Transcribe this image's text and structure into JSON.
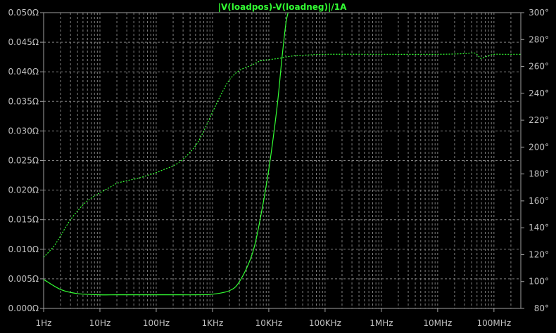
{
  "chart_data": {
    "type": "line",
    "title": "|V(loadpos)-V(loadneg)|/1A",
    "x_scale": "log",
    "xlim": [
      1,
      300000000
    ],
    "x_ticks": [
      {
        "value": 1,
        "label": "1Hz"
      },
      {
        "value": 10,
        "label": "10Hz"
      },
      {
        "value": 100,
        "label": "100Hz"
      },
      {
        "value": 1000,
        "label": "1KHz"
      },
      {
        "value": 10000,
        "label": "10KHz"
      },
      {
        "value": 100000,
        "label": "100KHz"
      },
      {
        "value": 1000000,
        "label": "1MHz"
      },
      {
        "value": 10000000,
        "label": "10MHz"
      },
      {
        "value": 100000000,
        "label": "100MHz"
      }
    ],
    "y_left": {
      "ylim": [
        0,
        0.05
      ],
      "ticks": [
        {
          "value": 0.0,
          "label": "0.000Ω"
        },
        {
          "value": 0.005,
          "label": "0.005Ω"
        },
        {
          "value": 0.01,
          "label": "0.010Ω"
        },
        {
          "value": 0.015,
          "label": "0.015Ω"
        },
        {
          "value": 0.02,
          "label": "0.020Ω"
        },
        {
          "value": 0.025,
          "label": "0.025Ω"
        },
        {
          "value": 0.03,
          "label": "0.030Ω"
        },
        {
          "value": 0.035,
          "label": "0.035Ω"
        },
        {
          "value": 0.04,
          "label": "0.040Ω"
        },
        {
          "value": 0.045,
          "label": "0.045Ω"
        },
        {
          "value": 0.05,
          "label": "0.050Ω"
        }
      ]
    },
    "y_right": {
      "ylim": [
        80,
        300
      ],
      "ticks": [
        {
          "value": 80,
          "label": "80°"
        },
        {
          "value": 100,
          "label": "100°"
        },
        {
          "value": 120,
          "label": "120°"
        },
        {
          "value": 140,
          "label": "140°"
        },
        {
          "value": 160,
          "label": "160°"
        },
        {
          "value": 180,
          "label": "180°"
        },
        {
          "value": 200,
          "label": "200°"
        },
        {
          "value": 220,
          "label": "220°"
        },
        {
          "value": 240,
          "label": "240°"
        },
        {
          "value": 260,
          "label": "260°"
        },
        {
          "value": 280,
          "label": "280°"
        },
        {
          "value": 300,
          "label": "300°"
        }
      ]
    },
    "grid": true,
    "colors": {
      "trace": "#33ff33",
      "grid": "#808080",
      "axis": "#a0a0a0",
      "background": "#000000",
      "text": "#c0c0c0"
    },
    "series": [
      {
        "axis": "left",
        "style": "solid",
        "x": [
          1,
          2,
          4,
          10,
          20,
          50,
          100,
          200,
          500,
          1000,
          2000,
          3000,
          5000,
          7000,
          10000,
          14000,
          17000,
          20000,
          22000
        ],
        "y": [
          0.0049,
          0.0032,
          0.0025,
          0.0023,
          0.0023,
          0.0023,
          0.0023,
          0.0023,
          0.0023,
          0.0024,
          0.003,
          0.0045,
          0.009,
          0.015,
          0.0235,
          0.034,
          0.042,
          0.048,
          0.05
        ]
      },
      {
        "axis": "right",
        "style": "dashed",
        "x": [
          1,
          1.5,
          2,
          3,
          5,
          7,
          10,
          15,
          20,
          30,
          50,
          70,
          100,
          150,
          200,
          300,
          500,
          700,
          1000,
          1500,
          2000,
          3000,
          5000,
          7000,
          10000,
          15000,
          20000,
          30000,
          50000,
          100000,
          1000000,
          10000000,
          30000000,
          45000000,
          55000000,
          60000000,
          80000000,
          100000000,
          150000000,
          300000000
        ],
        "y": [
          118,
          126,
          134,
          146,
          157,
          162,
          166,
          170,
          173,
          175,
          177,
          179,
          181,
          184,
          186,
          191,
          201,
          212,
          226,
          241,
          250,
          257,
          261,
          264,
          265,
          266,
          267,
          268,
          268.5,
          269,
          269,
          269,
          269.5,
          270,
          267,
          266,
          268,
          269,
          269,
          269
        ]
      }
    ]
  }
}
